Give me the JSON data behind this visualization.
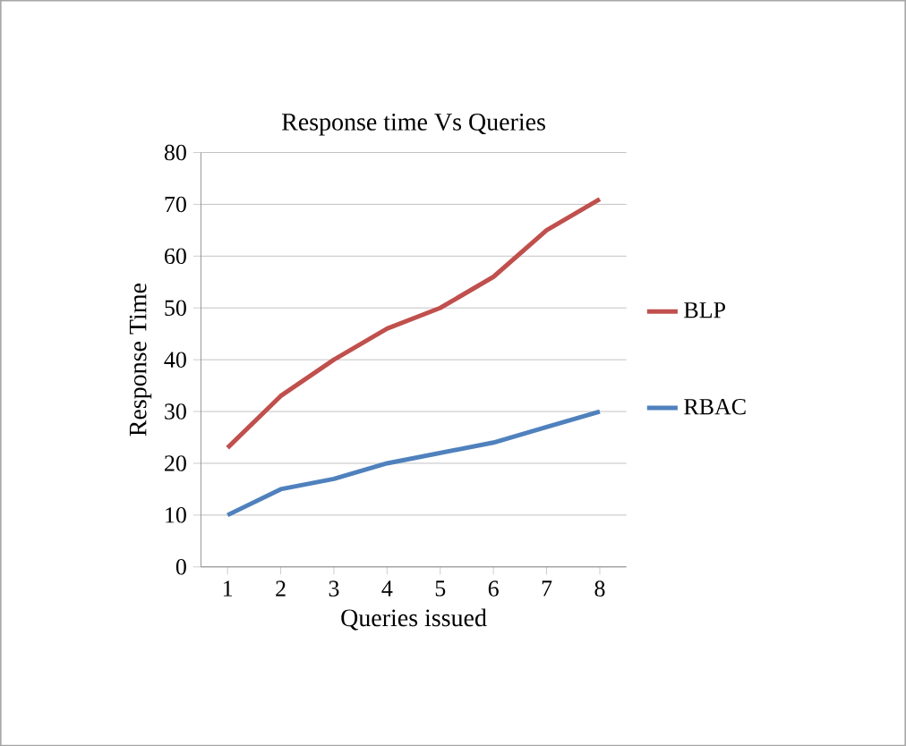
{
  "chart_data": {
    "type": "line",
    "title": "Response time Vs Queries",
    "xlabel": "Queries issued",
    "ylabel": "Response Time",
    "categories": [
      "1",
      "2",
      "3",
      "4",
      "5",
      "6",
      "7",
      "8"
    ],
    "series": [
      {
        "name": "BLP",
        "color": "#c0504d",
        "values": [
          23,
          33,
          40,
          46,
          50,
          56,
          65,
          71
        ]
      },
      {
        "name": "RBAC",
        "color": "#4f81bd",
        "values": [
          10,
          15,
          17,
          20,
          22,
          24,
          27,
          30
        ]
      }
    ],
    "ylim": [
      0,
      80
    ],
    "yticks": [
      0,
      10,
      20,
      30,
      40,
      50,
      60,
      70,
      80
    ],
    "grid": "y",
    "legend": "right",
    "marker": "none",
    "line_style": "solid"
  }
}
